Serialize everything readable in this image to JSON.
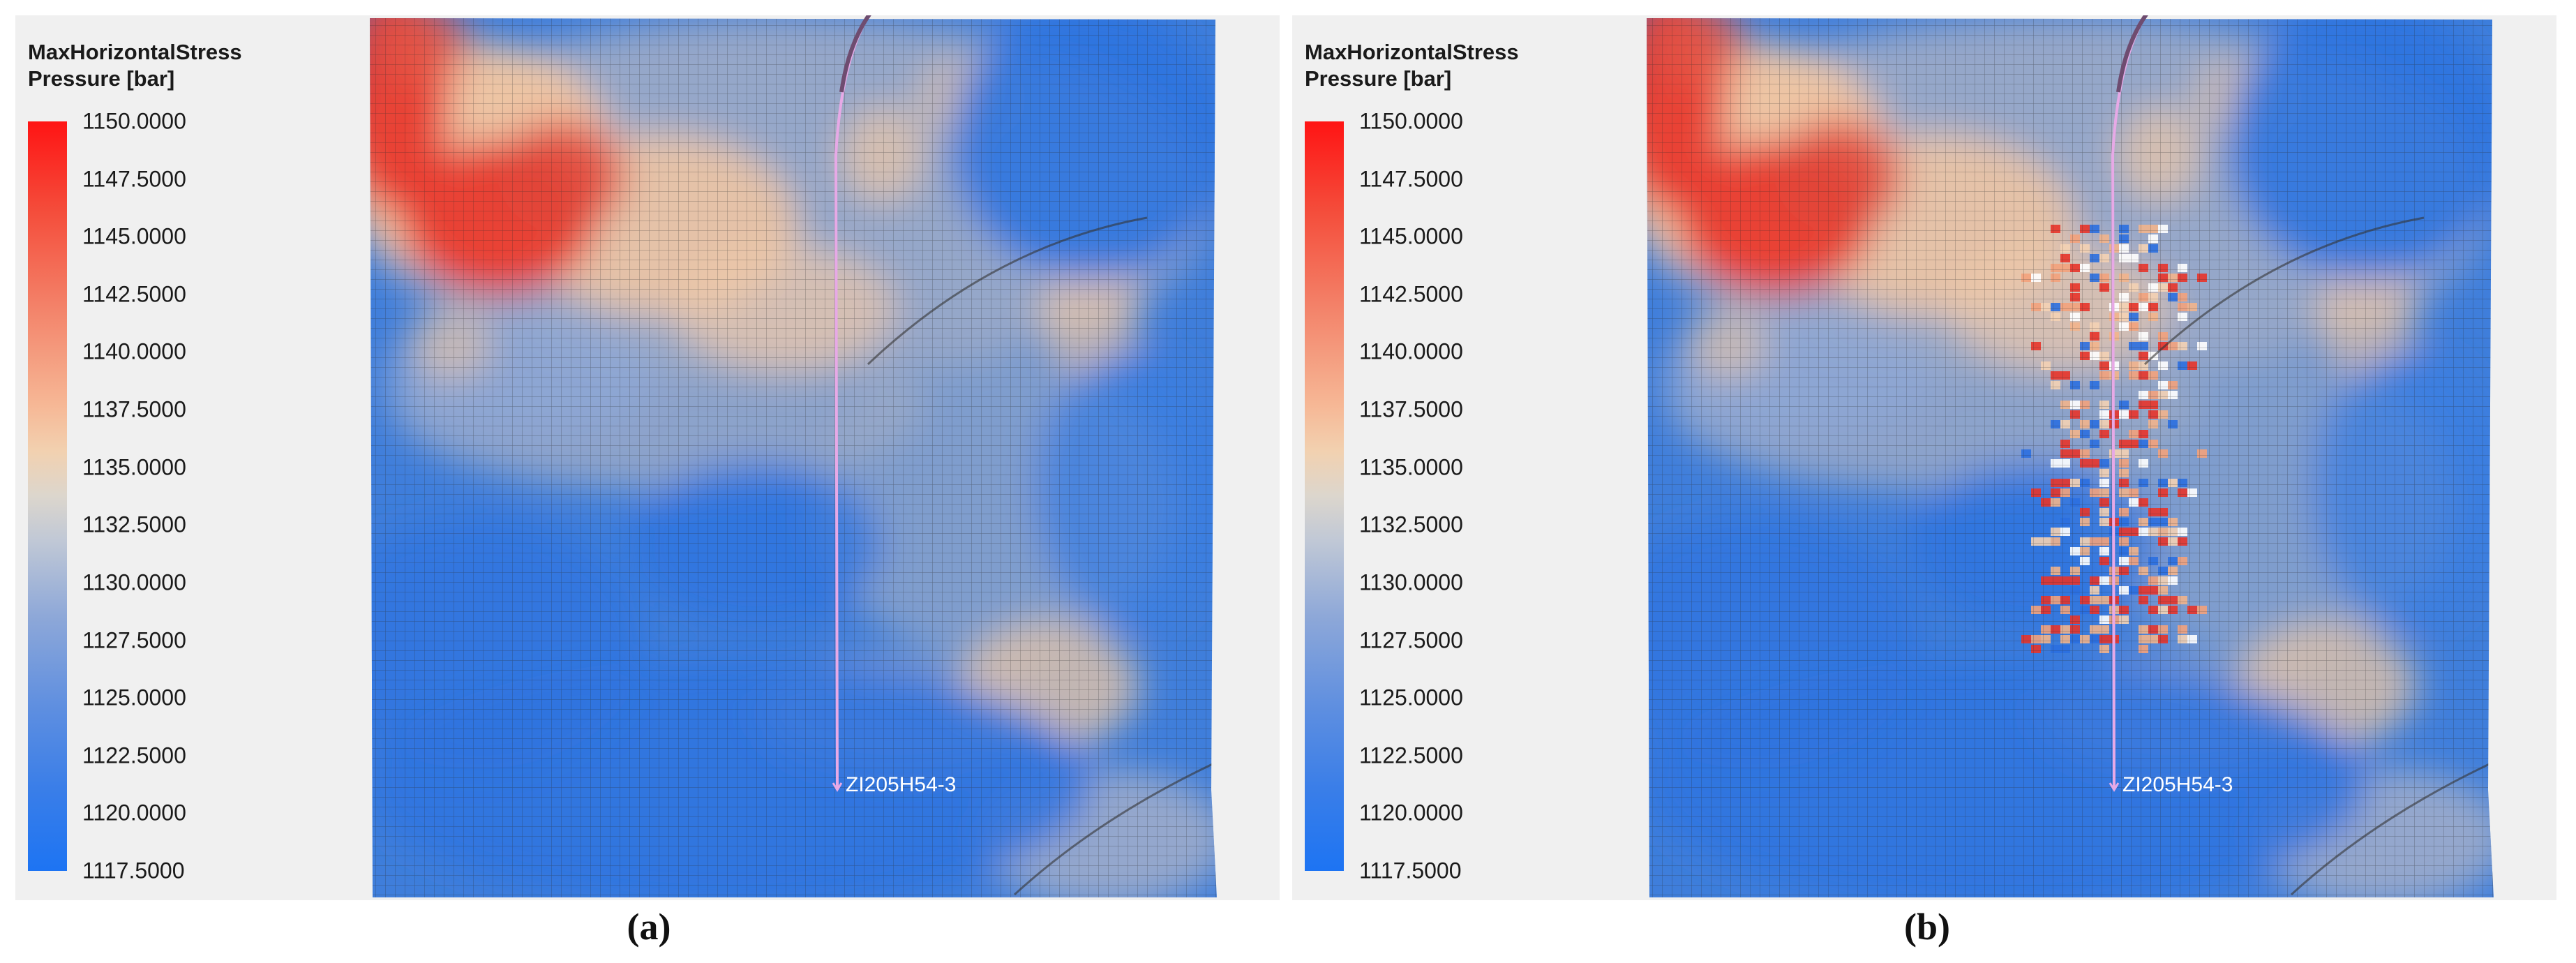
{
  "panels": [
    {
      "id": "a",
      "legend": {
        "title_line1": "MaxHorizontalStress",
        "title_line2": "Pressure [bar]",
        "ticks": [
          "1150.0000",
          "1147.5000",
          "1145.0000",
          "1142.5000",
          "1140.0000",
          "1137.5000",
          "1135.0000",
          "1132.5000",
          "1130.0000",
          "1127.5000",
          "1125.0000",
          "1122.5000",
          "1120.0000",
          "1117.5000"
        ],
        "colormap": [
          "#ff1414",
          "#f3836a",
          "#f2d1b0",
          "#dcd6cd",
          "#8ea8d8",
          "#3a7ee8",
          "#1d74f3"
        ]
      },
      "well_label": "ZI205H54-3",
      "caption": "(a)",
      "hydraulic_fracture_stimulation": false
    },
    {
      "id": "b",
      "legend": {
        "title_line1": "MaxHorizontalStress",
        "title_line2": "Pressure [bar]",
        "ticks": [
          "1150.0000",
          "1147.5000",
          "1145.0000",
          "1142.5000",
          "1140.0000",
          "1137.5000",
          "1135.0000",
          "1132.5000",
          "1130.0000",
          "1127.5000",
          "1125.0000",
          "1122.5000",
          "1120.0000",
          "1117.5000"
        ],
        "colormap": [
          "#ff1414",
          "#f3836a",
          "#f2d1b0",
          "#dcd6cd",
          "#8ea8d8",
          "#3a7ee8",
          "#1d74f3"
        ]
      },
      "well_label": "ZI205H54-3",
      "caption": "(b)",
      "hydraulic_fracture_stimulation": true
    }
  ],
  "colors": {
    "well_trajectory": "#e7a9e6",
    "grid_line": "#2b2b2b",
    "background": "#f0f0f0"
  }
}
